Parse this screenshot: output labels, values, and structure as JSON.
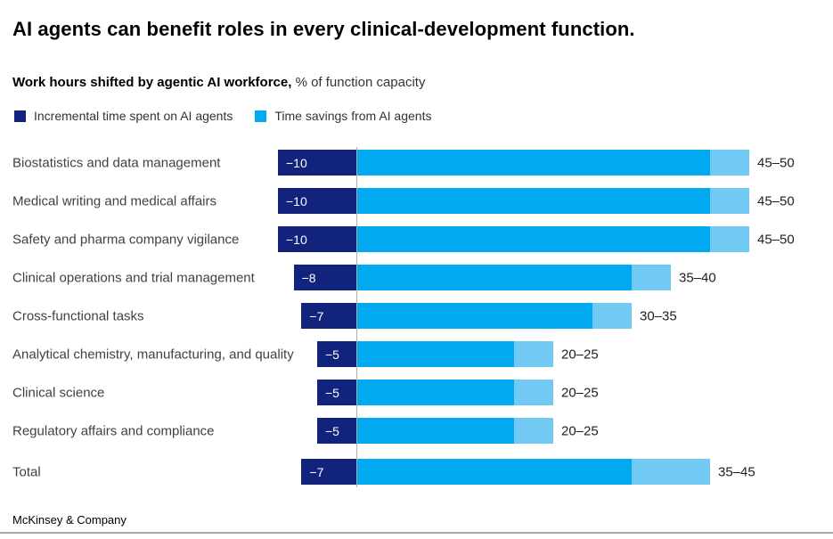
{
  "header": {
    "title": "AI agents can benefit roles in every clinical-development function.",
    "subtitle_bold": "Work hours shifted by agentic AI workforce,",
    "subtitle_rest": "% of function capacity"
  },
  "legend": {
    "items": [
      {
        "name": "incremental",
        "label": "Incremental time spent on AI agents",
        "color": "#12237D"
      },
      {
        "name": "savings",
        "label": "Time savings from AI agents",
        "color": "#00A9F0"
      }
    ]
  },
  "chart_data": {
    "type": "bar",
    "orientation": "horizontal",
    "title": "Work hours shifted by agentic AI workforce",
    "units": "% of function capacity",
    "legend_position": "top-left",
    "zero_axis_line": true,
    "axes_visible": false,
    "colors": {
      "incremental_time": "#12237D",
      "time_savings_lower": "#00A9F0",
      "time_savings_upper": "#72C9F3",
      "zero_line": "#adadad"
    },
    "categories": [
      "Biostatistics and data management",
      "Medical writing and medical affairs",
      "Safety and pharma company vigilance",
      "Clinical operations and trial management",
      "Cross-functional tasks",
      "Analytical chemistry, manufacturing, and quality",
      "Clinical science",
      "Regulatory affairs and compliance",
      "Total"
    ],
    "series": [
      {
        "name": "Incremental time spent on AI agents",
        "values": [
          -10,
          -10,
          -10,
          -8,
          -7,
          -5,
          -5,
          -5,
          -7
        ]
      },
      {
        "name": "Time savings from AI agents (lower bound)",
        "values": [
          45,
          45,
          45,
          35,
          30,
          20,
          20,
          20,
          35
        ]
      },
      {
        "name": "Time savings from AI agents (upper bound)",
        "values": [
          50,
          50,
          50,
          40,
          35,
          25,
          25,
          25,
          45
        ]
      }
    ],
    "rows": [
      {
        "label": "Biostatistics and data management",
        "incremental": -10,
        "incremental_label": "−10",
        "savings_low": 45,
        "savings_high": 50,
        "range_label": "45–50",
        "is_total": false
      },
      {
        "label": "Medical writing and medical affairs",
        "incremental": -10,
        "incremental_label": "−10",
        "savings_low": 45,
        "savings_high": 50,
        "range_label": "45–50",
        "is_total": false
      },
      {
        "label": "Safety and pharma company vigilance",
        "incremental": -10,
        "incremental_label": "−10",
        "savings_low": 45,
        "savings_high": 50,
        "range_label": "45–50",
        "is_total": false
      },
      {
        "label": "Clinical operations and trial management",
        "incremental": -8,
        "incremental_label": "−8",
        "savings_low": 35,
        "savings_high": 40,
        "range_label": "35–40",
        "is_total": false
      },
      {
        "label": "Cross-functional tasks",
        "incremental": -7,
        "incremental_label": "−7",
        "savings_low": 30,
        "savings_high": 35,
        "range_label": "30–35",
        "is_total": false
      },
      {
        "label": "Analytical chemistry, manufacturing, and quality",
        "incremental": -5,
        "incremental_label": "−5",
        "savings_low": 20,
        "savings_high": 25,
        "range_label": "20–25",
        "is_total": false
      },
      {
        "label": "Clinical science",
        "incremental": -5,
        "incremental_label": "−5",
        "savings_low": 20,
        "savings_high": 25,
        "range_label": "20–25",
        "is_total": false
      },
      {
        "label": "Regulatory affairs and compliance",
        "incremental": -5,
        "incremental_label": "−5",
        "savings_low": 20,
        "savings_high": 25,
        "range_label": "20–25",
        "is_total": false
      },
      {
        "label": "Total",
        "incremental": -7,
        "incremental_label": "−7",
        "savings_low": 35,
        "savings_high": 45,
        "range_label": "35–45",
        "is_total": true
      }
    ]
  },
  "footer": {
    "brand": "McKinsey & Company"
  }
}
